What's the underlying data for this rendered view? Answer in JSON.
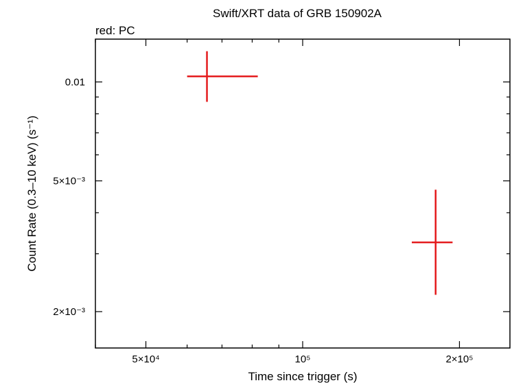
{
  "chart_data": {
    "type": "scatter",
    "title": "Swift/XRT data of GRB 150902A",
    "subtitle": "red: PC",
    "xlabel": "Time since trigger (s)",
    "ylabel": "Count Rate (0.3–10 keV) (s⁻¹)",
    "xscale": "log",
    "yscale": "log",
    "xlim": [
      40000,
      250000
    ],
    "ylim": [
      0.00155,
      0.0135
    ],
    "xticks": [
      {
        "value": 50000,
        "label": "5×10⁴"
      },
      {
        "value": 100000,
        "label": "10⁵"
      },
      {
        "value": 200000,
        "label": "2×10⁵"
      }
    ],
    "yticks": [
      {
        "value": 0.002,
        "label": "2×10⁻³"
      },
      {
        "value": 0.005,
        "label": "5×10⁻³"
      },
      {
        "value": 0.01,
        "label": "0.01"
      }
    ],
    "series": [
      {
        "name": "PC",
        "color": "#e41a1c",
        "points": [
          {
            "x": 65500,
            "xlo": 60000,
            "xhi": 82000,
            "y": 0.0104,
            "ylo": 0.0087,
            "yhi": 0.0124
          },
          {
            "x": 180000,
            "xlo": 162000,
            "xhi": 194000,
            "y": 0.00325,
            "ylo": 0.00225,
            "yhi": 0.0047
          }
        ]
      }
    ]
  }
}
